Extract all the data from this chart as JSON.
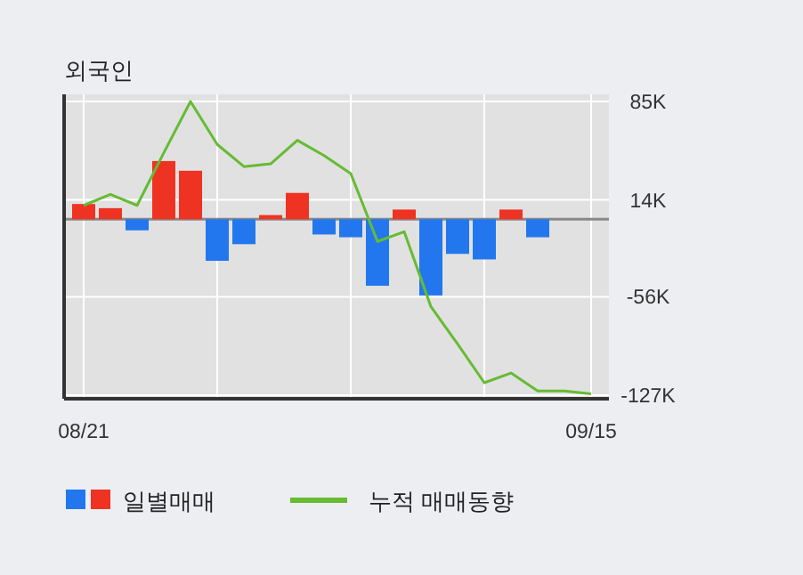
{
  "chart_data": {
    "type": "bar",
    "title": "외국인",
    "categories": [
      "08/21",
      null,
      null,
      null,
      null,
      null,
      null,
      null,
      null,
      null,
      null,
      null,
      null,
      null,
      null,
      null,
      null,
      null,
      null,
      "09/15"
    ],
    "series": [
      {
        "name": "일별매매",
        "colors": [
          "#ee3322",
          "#ee3322",
          "#2277ee",
          "#ee3322",
          "#ee3322",
          "#2277ee",
          "#2277ee",
          "#ee3322",
          "#ee3322",
          "#2277ee",
          "#2277ee",
          "#2277ee",
          "#ee3322",
          "#2277ee",
          "#2277ee",
          "#2277ee",
          "#ee3322",
          "#2277ee",
          null,
          null
        ],
        "values": [
          11000,
          8000,
          -8000,
          42000,
          35000,
          -30000,
          -18000,
          3000,
          19000,
          -11000,
          -13000,
          -48000,
          7000,
          -55000,
          -25000,
          -29000,
          7000,
          -13000,
          null,
          null
        ]
      },
      {
        "name": "누적 매매동향",
        "type": "line",
        "color": "#66bb33",
        "values": [
          10000,
          18000,
          10000,
          48000,
          85000,
          54000,
          38000,
          40000,
          57000,
          46000,
          33000,
          -16000,
          -9000,
          -63000,
          -90000,
          -118000,
          -111000,
          -124000,
          -124000,
          -126000
        ]
      }
    ],
    "ylim": [
      -127000,
      85000
    ],
    "yticks": [
      {
        "value": 85000,
        "label": "85K"
      },
      {
        "value": 14000,
        "label": "14K"
      },
      {
        "value": -56000,
        "label": "-56K"
      },
      {
        "value": -127000,
        "label": "-127K"
      }
    ],
    "grid": true,
    "legend": "bottom"
  }
}
